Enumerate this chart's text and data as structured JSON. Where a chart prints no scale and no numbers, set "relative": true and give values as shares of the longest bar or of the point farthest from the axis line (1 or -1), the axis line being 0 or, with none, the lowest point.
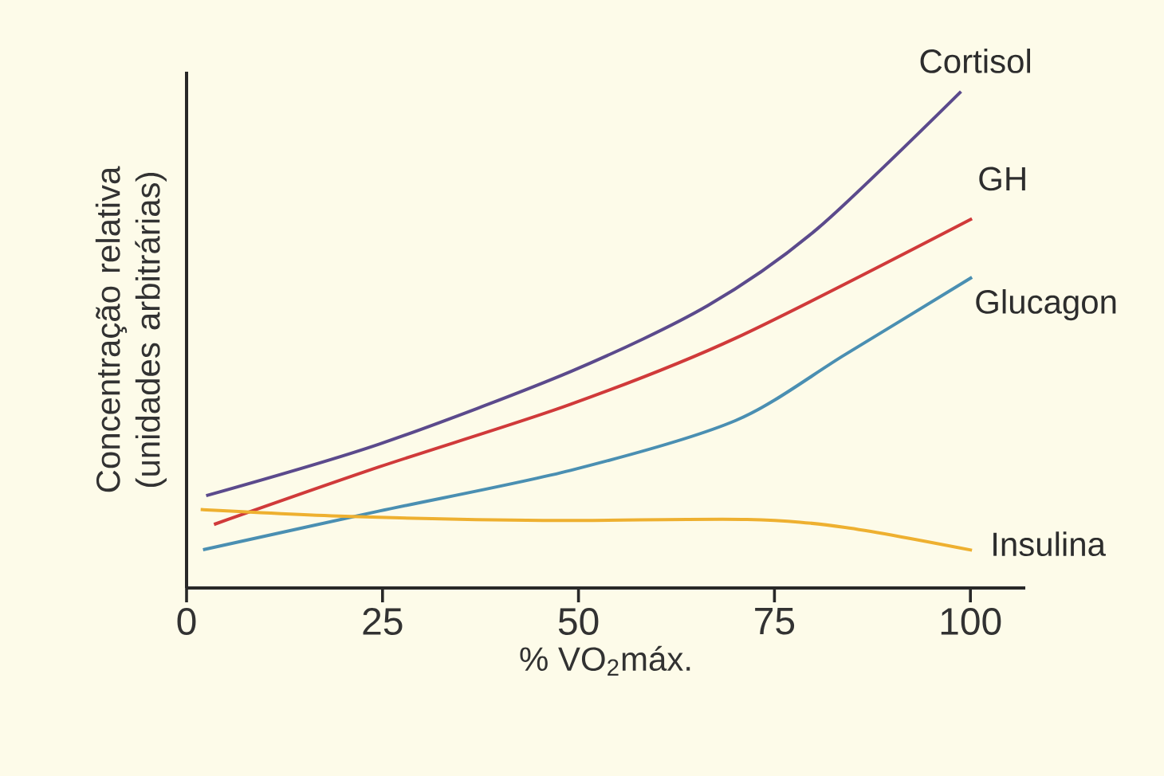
{
  "chart_data": {
    "type": "line",
    "xlabel": "% VO$_{2}$máx.",
    "ylabel": "Concentração relativa (unidades arbitrárias)",
    "relative": true,
    "xlim": [
      0,
      107
    ],
    "xticks": [
      0,
      25,
      50,
      75,
      100
    ],
    "series": [
      {
        "name": "Cortisol",
        "color": "#5b4a8c",
        "x": [
          2.5,
          24.6,
          49,
          66.5,
          80.5,
          98.8
        ],
        "values": [
          0.186,
          0.29,
          0.436,
          0.569,
          0.724,
          1.0
        ]
      },
      {
        "name": "GH",
        "color": "#d03a3a",
        "x": [
          3.5,
          24.6,
          49,
          70,
          100.2
        ],
        "values": [
          0.128,
          0.244,
          0.37,
          0.503,
          0.744
        ]
      },
      {
        "name": "Glucagon",
        "color": "#4a8fb2",
        "x": [
          2.1,
          24.6,
          49,
          70,
          84,
          100.2
        ],
        "values": [
          0.077,
          0.155,
          0.237,
          0.337,
          0.47,
          0.626
        ]
      },
      {
        "name": "Insulina",
        "color": "#eeb030",
        "x": [
          1.8,
          21,
          45.5,
          71.5,
          84,
          100.2
        ],
        "values": [
          0.158,
          0.144,
          0.136,
          0.138,
          0.122,
          0.076
        ]
      }
    ]
  }
}
